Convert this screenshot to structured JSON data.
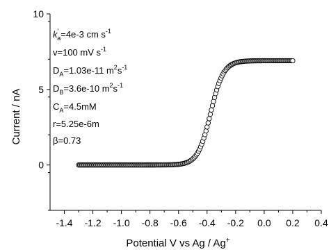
{
  "chart_data": {
    "type": "scatter",
    "xlabel_main": "Potential V vs Ag / Ag",
    "xlabel_sup": "+",
    "ylabel": "Current / nA",
    "xlim": [
      -1.5,
      0.4
    ],
    "ylim": [
      -3,
      10
    ],
    "x_ticks": [
      "-1.4",
      "-1.2",
      "-1.0",
      "-0.8",
      "-0.6",
      "-0.4",
      "-0.2",
      "0.0",
      "0.2",
      "0.4"
    ],
    "x_tick_values": [
      -1.4,
      -1.2,
      -1.0,
      -0.8,
      -0.6,
      -0.4,
      -0.2,
      0.0,
      0.2,
      0.4
    ],
    "y_ticks": [
      "0",
      "5",
      "10"
    ],
    "y_tick_values": [
      0,
      5,
      10
    ],
    "annotations": [
      {
        "base": "k",
        "sup": "'",
        "sub": "a",
        "rest": "=4e-3 cm s",
        "rest_sup": "-1"
      },
      {
        "base": "v=100 mV s",
        "sup": "-1"
      },
      {
        "base": "D",
        "sub": "A",
        "rest": "=1.03e-11 m",
        "rest_sup": "2",
        "rest2": "s",
        "rest2_sup": "-1"
      },
      {
        "base": "D",
        "sub": "B",
        "rest": "=3.6e-10 m",
        "rest_sup": "2",
        "rest2": "s",
        "rest2_sup": "-1"
      },
      {
        "base": "C",
        "sub": "A",
        "rest": "=4.5mM"
      },
      {
        "base": "r=5.25e-6m"
      },
      {
        "base": "β=0.73"
      }
    ],
    "series": [
      {
        "marker": "open-circle",
        "color": "#000000",
        "x_start": -1.3,
        "x_end": 0.2,
        "x_step": 0.0075,
        "model": "sigmoid",
        "plateau": 6.9,
        "midpoint": -0.375,
        "slope": 0.045
      },
      {
        "marker": "line",
        "color": "#cc0000"
      }
    ]
  }
}
